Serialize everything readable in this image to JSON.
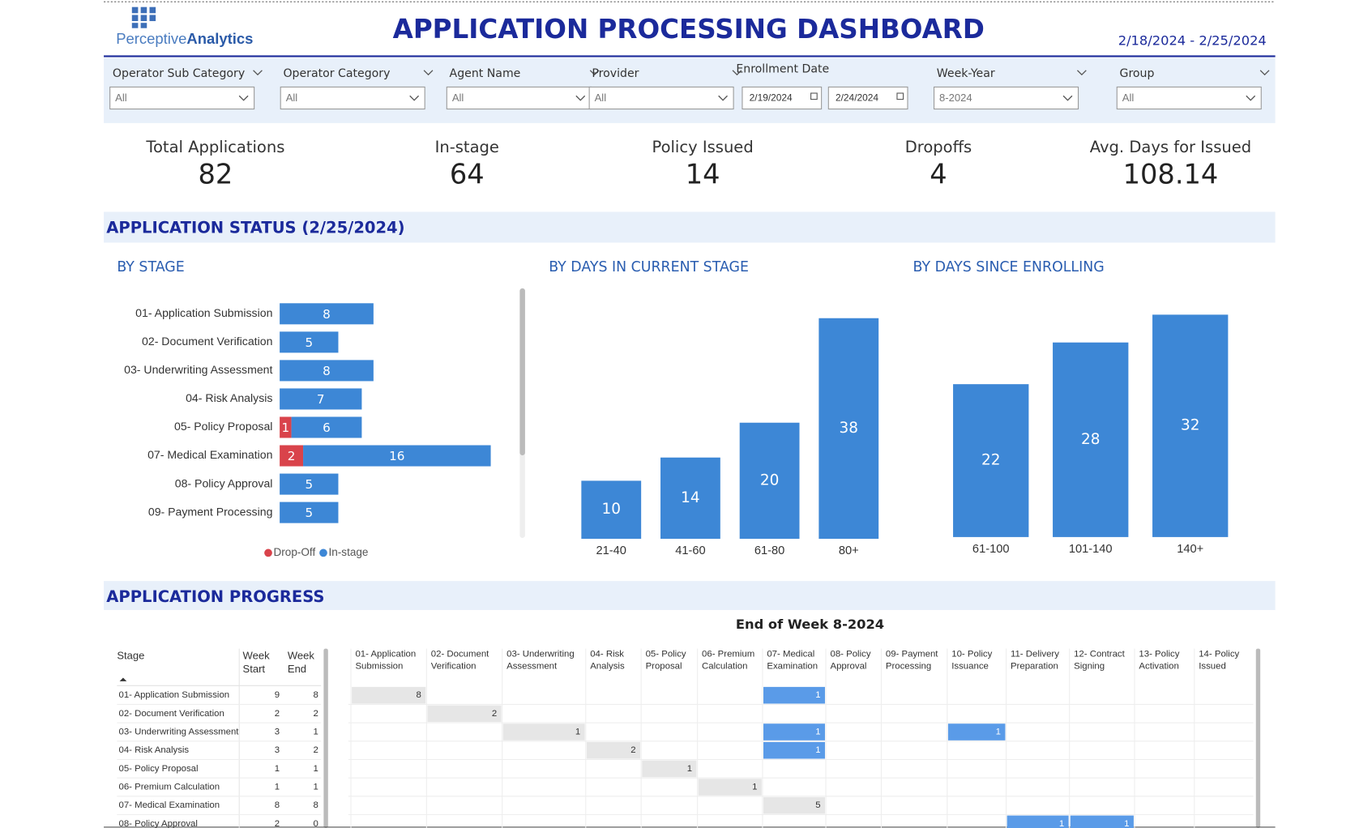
{
  "header": {
    "logo_light": "Perceptive",
    "logo_bold": "Analytics",
    "title": "APPLICATION PROCESSING DASHBOARD",
    "date_range": "2/18/2024 - 2/25/2024"
  },
  "filters": [
    {
      "label": "Operator Sub Category",
      "value": "All"
    },
    {
      "label": "Operator Category",
      "value": "All"
    },
    {
      "label": "Agent Name",
      "value": "All"
    },
    {
      "label": "Provider",
      "value": "All"
    },
    {
      "label": "Enrollment Date",
      "from": "2/19/2024",
      "to": "2/24/2024"
    },
    {
      "label": "Week-Year",
      "value": "8-2024"
    },
    {
      "label": "Group",
      "value": "All"
    }
  ],
  "kpis": [
    {
      "label": "Total Applications",
      "value": 82
    },
    {
      "label": "In-stage",
      "value": 64
    },
    {
      "label": "Policy Issued",
      "value": 14
    },
    {
      "label": "Dropoffs",
      "value": 4
    },
    {
      "label": "Avg. Days for Issued",
      "value": 108.14
    }
  ],
  "status_section": {
    "title": "APPLICATION STATUS (2/25/2024)"
  },
  "chart_data": [
    {
      "type": "hbar",
      "title": "BY STAGE",
      "categories": [
        "01- Application Submission",
        "02- Document Verification",
        "03- Underwriting Assessment",
        "04- Risk Analysis",
        "05- Policy Proposal",
        "07- Medical Examination",
        "08- Policy Approval",
        "09- Payment Processing"
      ],
      "series": [
        {
          "name": "Drop-Off",
          "color": "#d9434b",
          "values": [
            null,
            null,
            null,
            null,
            1,
            2,
            null,
            null
          ]
        },
        {
          "name": "In-stage",
          "color": "#3d87d6",
          "values": [
            8,
            5,
            8,
            7,
            6,
            16,
            5,
            5
          ]
        }
      ],
      "stacked": true,
      "legend": "bottom"
    },
    {
      "type": "bar",
      "title": "BY DAYS IN CURRENT STAGE",
      "categories": [
        "21-40",
        "41-60",
        "61-80",
        "80+"
      ],
      "values": [
        10,
        14,
        20,
        38
      ],
      "color": "#3d87d6"
    },
    {
      "type": "bar",
      "title": "BY DAYS SINCE ENROLLING",
      "categories": [
        "61-100",
        "101-140",
        "140+"
      ],
      "values": [
        22,
        28,
        32
      ],
      "color": "#3d87d6"
    }
  ],
  "progress_section": {
    "title": "APPLICATION PROGRESS",
    "subtitle": "End of Week 8-2024",
    "columns": [
      "Stage",
      "Week Start",
      "Week End"
    ],
    "stages": [
      "01- Application Submission",
      "02- Document Verification",
      "03- Underwriting Assessment",
      "04- Risk Analysis",
      "05- Policy Proposal",
      "06- Premium Calculation",
      "07- Medical Examination",
      "08- Policy Approval",
      "09- Payment Processing",
      "10- Policy Issuance",
      "11- Delivery Preparation",
      "12- Contract Signing",
      "13- Policy Activation",
      "14- Policy Issued"
    ],
    "rows": [
      {
        "stage": "01- Application Submission",
        "week_start": 9,
        "week_end": 8,
        "cells": [
          {
            "value": 8,
            "color": "#e6e6e6"
          },
          null,
          null,
          null,
          null,
          null,
          {
            "value": 1,
            "color": "#5a9be8"
          },
          null,
          null,
          null,
          null,
          null,
          null,
          null
        ]
      },
      {
        "stage": "02- Document Verification",
        "week_start": 2,
        "week_end": 2,
        "cells": [
          null,
          {
            "value": 2,
            "color": "#e6e6e6"
          },
          null,
          null,
          null,
          null,
          null,
          null,
          null,
          null,
          null,
          null,
          null,
          null
        ]
      },
      {
        "stage": "03- Underwriting Assessment",
        "week_start": 3,
        "week_end": 1,
        "cells": [
          null,
          null,
          {
            "value": 1,
            "color": "#e6e6e6"
          },
          null,
          null,
          null,
          {
            "value": 1,
            "color": "#5a9be8"
          },
          null,
          null,
          {
            "value": 1,
            "color": "#5a9be8"
          },
          null,
          null,
          null,
          null
        ]
      },
      {
        "stage": "04- Risk Analysis",
        "week_start": 3,
        "week_end": 2,
        "cells": [
          null,
          null,
          null,
          {
            "value": 2,
            "color": "#e6e6e6"
          },
          null,
          null,
          {
            "value": 1,
            "color": "#5a9be8"
          },
          null,
          null,
          null,
          null,
          null,
          null,
          null
        ]
      },
      {
        "stage": "05- Policy Proposal",
        "week_start": 1,
        "week_end": 1,
        "cells": [
          null,
          null,
          null,
          null,
          {
            "value": 1,
            "color": "#e6e6e6"
          },
          null,
          null,
          null,
          null,
          null,
          null,
          null,
          null,
          null
        ]
      },
      {
        "stage": "06- Premium Calculation",
        "week_start": 1,
        "week_end": 1,
        "cells": [
          null,
          null,
          null,
          null,
          null,
          {
            "value": 1,
            "color": "#e6e6e6"
          },
          null,
          null,
          null,
          null,
          null,
          null,
          null,
          null
        ]
      },
      {
        "stage": "07- Medical Examination",
        "week_start": 8,
        "week_end": 8,
        "cells": [
          null,
          null,
          null,
          null,
          null,
          null,
          {
            "value": 5,
            "color": "#e6e6e6"
          },
          null,
          null,
          null,
          null,
          null,
          null,
          null
        ]
      },
      {
        "stage": "08- Policy Approval",
        "week_start": 2,
        "week_end": 0,
        "cells": [
          null,
          null,
          null,
          null,
          null,
          null,
          null,
          null,
          null,
          null,
          {
            "value": 1,
            "color": "#5a9be8"
          },
          {
            "value": 1,
            "color": "#5a9be8"
          },
          null,
          null
        ]
      }
    ]
  }
}
